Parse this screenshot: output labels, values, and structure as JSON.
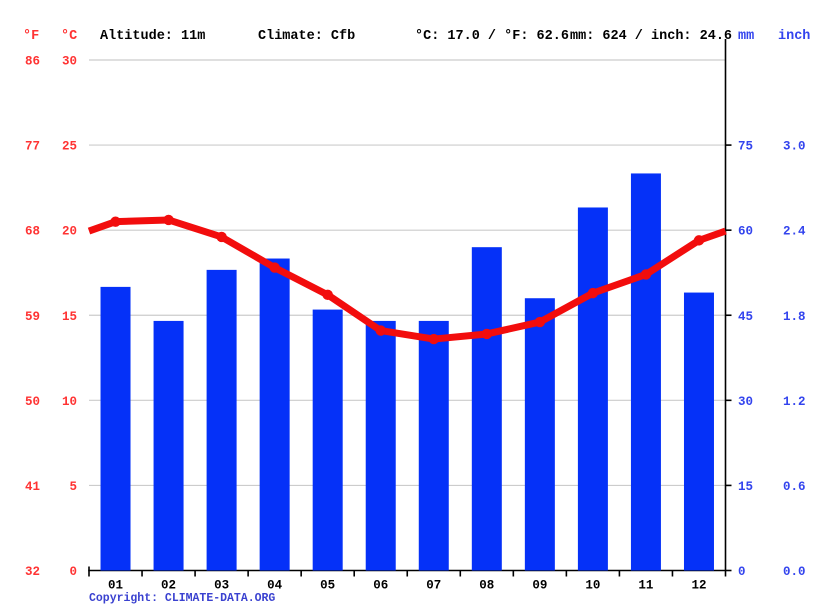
{
  "header": {
    "f_label": "°F",
    "c_label": "°C",
    "altitude": "Altitude: 11m",
    "climate": "Climate: Cfb",
    "temp_summary": "°C: 17.0 / °F: 62.6",
    "precip_summary": "mm: 624 / inch: 24.6",
    "mm_label": "mm",
    "inch_label": "inch"
  },
  "footer": {
    "copyright": "Copyright: CLIMATE-DATA.ORG"
  },
  "colors": {
    "red_text": "#ff3333",
    "line_red": "#f20d0d",
    "bar_blue": "#0531f8",
    "blue_text": "#3344ee",
    "grid": "#cccccc",
    "axis": "#000000",
    "month_text": "#000000"
  },
  "chart_data": {
    "type": "bar",
    "title": "Climate graph (monthly temperature and precipitation)",
    "categories": [
      "01",
      "02",
      "03",
      "04",
      "05",
      "06",
      "07",
      "08",
      "09",
      "10",
      "11",
      "12"
    ],
    "series": [
      {
        "name": "precipitation_mm",
        "type": "bar",
        "values": [
          50,
          44,
          53,
          55,
          46,
          44,
          44,
          57,
          48,
          64,
          70,
          49
        ]
      },
      {
        "name": "temperature_c",
        "type": "line",
        "values": [
          20.5,
          20.6,
          19.6,
          17.8,
          16.2,
          14.1,
          13.6,
          13.9,
          14.6,
          16.3,
          17.4,
          19.4
        ]
      }
    ],
    "axes": {
      "left_fahrenheit_ticks": [
        "86",
        "77",
        "68",
        "59",
        "50",
        "41",
        "32"
      ],
      "left_celsius_ticks": [
        "30",
        "25",
        "20",
        "15",
        "10",
        "5",
        "0"
      ],
      "left_celsius_values": [
        30,
        25,
        20,
        15,
        10,
        5,
        0
      ],
      "right_mm_ticks": [
        "75",
        "60",
        "45",
        "30",
        "15",
        "0"
      ],
      "right_mm_values": [
        75,
        60,
        45,
        30,
        15,
        0
      ],
      "right_inch_ticks": [
        "3.0",
        "2.4",
        "1.8",
        "1.2",
        "0.6",
        "0.0"
      ],
      "celsius_range": [
        0,
        30
      ],
      "mm_range": [
        0,
        90
      ]
    },
    "grid": true,
    "legend": "none"
  }
}
